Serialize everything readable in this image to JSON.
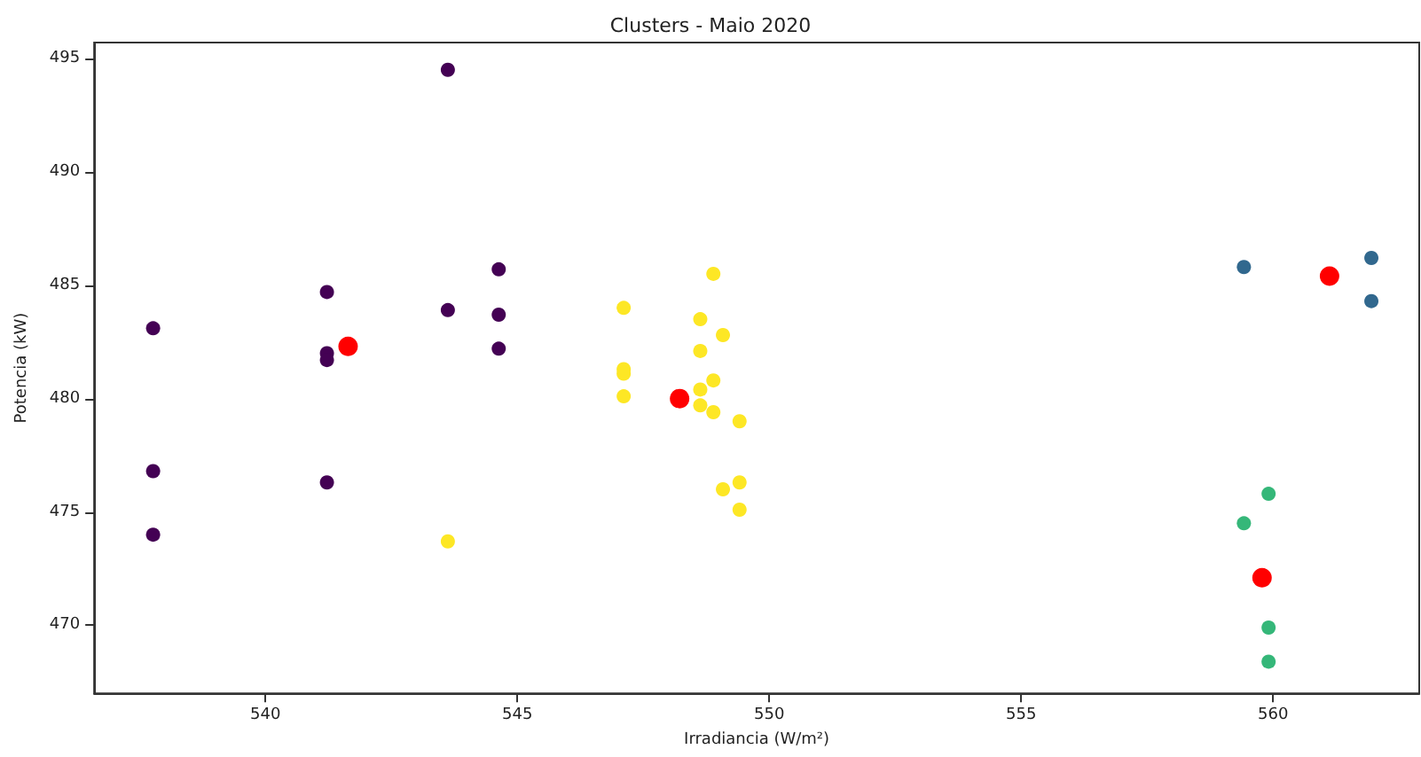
{
  "chart_data": {
    "type": "scatter",
    "title": "Clusters - Maio 2020",
    "xlabel": "Irradiancia (W/m²)",
    "ylabel": "Potencia (kW)",
    "xlim": [
      536.6,
      562.9
    ],
    "xticks": [
      540,
      545,
      550,
      555,
      560
    ],
    "ylim": [
      467.0,
      495.7
    ],
    "yticks": [
      470,
      475,
      480,
      485,
      490,
      495
    ],
    "grid": false,
    "marker": "circle",
    "series": [
      {
        "color": "#440154",
        "x": [
          537.77,
          537.77,
          537.77,
          541.22,
          541.22,
          541.22,
          541.22,
          543.62,
          543.62,
          544.63,
          544.63,
          544.63
        ],
        "values": [
          483.1,
          476.8,
          474.0,
          484.7,
          482.0,
          481.7,
          476.3,
          494.5,
          483.9,
          485.7,
          483.7,
          482.2
        ]
      },
      {
        "color": "#31688e",
        "x": [
          559.42,
          561.95,
          561.95
        ],
        "values": [
          485.8,
          486.2,
          484.3
        ]
      },
      {
        "color": "#35b779",
        "x": [
          559.91,
          559.42,
          559.91,
          559.91
        ],
        "values": [
          475.8,
          474.5,
          469.9,
          468.4
        ]
      },
      {
        "color": "#fde725",
        "x": [
          543.62,
          547.11,
          547.11,
          547.11,
          547.11,
          548.89,
          548.63,
          549.08,
          548.63,
          548.89,
          548.63,
          548.63,
          548.89,
          549.41,
          549.08,
          549.41,
          549.41
        ],
        "values": [
          473.7,
          484.0,
          481.3,
          481.1,
          480.1,
          485.5,
          483.5,
          482.8,
          482.1,
          480.8,
          480.4,
          479.7,
          479.4,
          479.0,
          476.0,
          476.3,
          475.1
        ]
      },
      {
        "color": "#ff0000",
        "x": [
          541.64,
          548.22,
          561.12,
          559.78
        ],
        "values": [
          482.3,
          480.0,
          485.4,
          472.1
        ]
      }
    ]
  }
}
